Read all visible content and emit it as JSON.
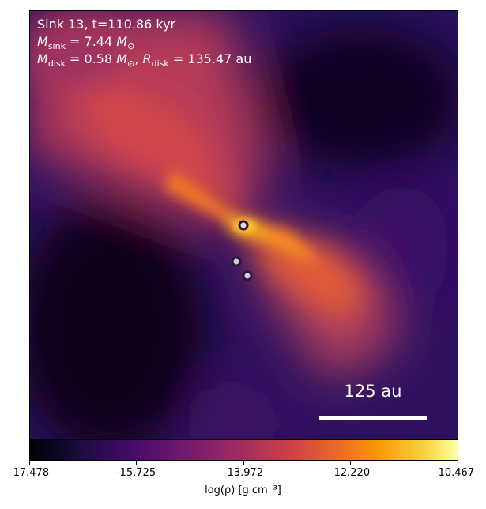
{
  "annotation": {
    "line1": "Sink 13, t=110.86 kyr",
    "mass_symbol": "M",
    "sink_sub": "sink",
    "sink_mass": "= 7.44",
    "disk_sub": "disk",
    "disk_mass": "= 0.58",
    "radius_symbol": "R",
    "disk_radius": "= 135.47 au",
    "solar_unit": "M",
    "solar_sub": "⊙"
  },
  "scalebar": {
    "label": "125 au"
  },
  "colorbar": {
    "ticks": [
      "-17.478",
      "-15.725",
      "-13.972",
      "-12.220",
      "-10.467"
    ],
    "label": "log(ρ) [g cm⁻³]",
    "colormap": "inferno"
  },
  "sinks": [
    {
      "name": "primary"
    },
    {
      "name": "companion-a"
    },
    {
      "name": "companion-b"
    }
  ]
}
